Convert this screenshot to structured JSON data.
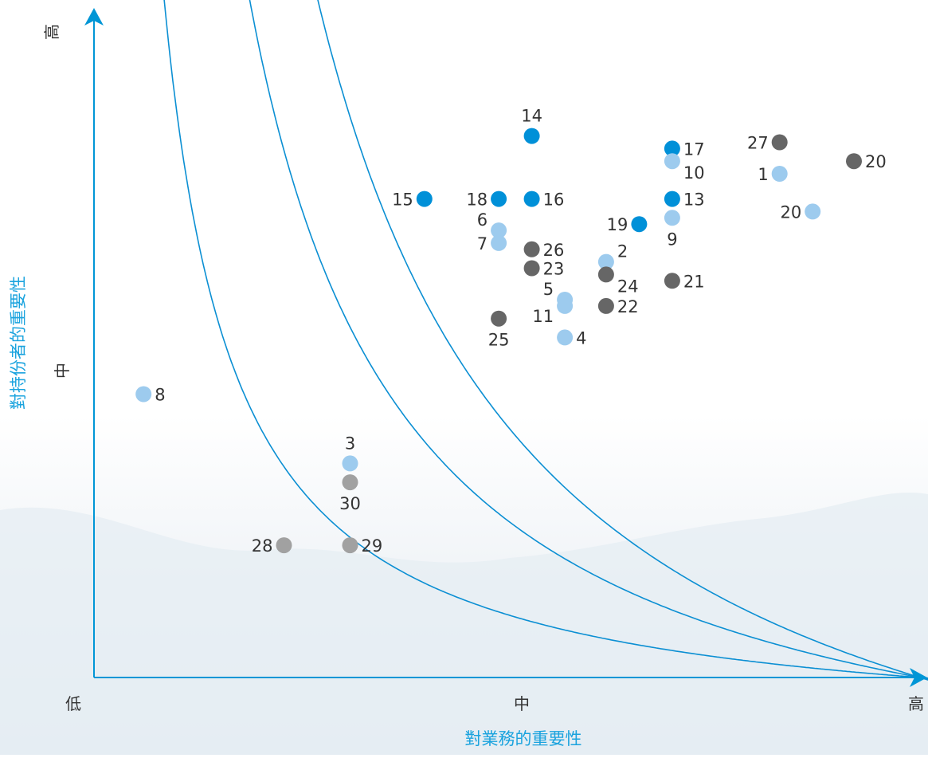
{
  "chart_data": {
    "type": "scatter",
    "title": "",
    "xlabel": "對業務的重要性",
    "ylabel": "對持份者的重要性",
    "xlim": [
      0,
      1
    ],
    "ylim": [
      0,
      1
    ],
    "x_tick_labels": [
      "低",
      "中",
      "高"
    ],
    "y_tick_labels": [
      "中",
      "高"
    ],
    "grid": false,
    "colors": {
      "axis": "#0096d6",
      "curve": "#0b8fd3",
      "label_text": "#333333",
      "dark_blue": "#0090d8",
      "light_blue": "#9dcbee",
      "dark_gray": "#666666",
      "light_gray": "#a1a1a1"
    },
    "curves": [
      {
        "k": 0.1
      },
      {
        "k": 0.25
      },
      {
        "k": 0.4
      }
    ],
    "series": [
      {
        "color_key": "dark_blue",
        "points": [
          {
            "label": "14",
            "x": 0.53,
            "y": 0.86,
            "pos": "above"
          },
          {
            "label": "15",
            "x": 0.4,
            "y": 0.76,
            "pos": "left"
          },
          {
            "label": "18",
            "x": 0.49,
            "y": 0.76,
            "pos": "left"
          },
          {
            "label": "16",
            "x": 0.53,
            "y": 0.76,
            "pos": "right"
          },
          {
            "label": "17",
            "x": 0.7,
            "y": 0.84,
            "pos": "right"
          },
          {
            "label": "13",
            "x": 0.7,
            "y": 0.76,
            "pos": "right"
          },
          {
            "label": "19",
            "x": 0.66,
            "y": 0.72,
            "pos": "left"
          }
        ]
      },
      {
        "color_key": "light_blue",
        "points": [
          {
            "label": "10",
            "x": 0.7,
            "y": 0.82,
            "pos": "right-low"
          },
          {
            "label": "1",
            "x": 0.83,
            "y": 0.8,
            "pos": "left"
          },
          {
            "label": "20",
            "x": 0.87,
            "y": 0.74,
            "pos": "left"
          },
          {
            "label": "9",
            "x": 0.7,
            "y": 0.73,
            "pos": "below"
          },
          {
            "label": "6",
            "x": 0.49,
            "y": 0.71,
            "pos": "left-high"
          },
          {
            "label": "7",
            "x": 0.49,
            "y": 0.69,
            "pos": "left"
          },
          {
            "label": "2",
            "x": 0.62,
            "y": 0.66,
            "pos": "right-high"
          },
          {
            "label": "5",
            "x": 0.57,
            "y": 0.6,
            "pos": "left-high"
          },
          {
            "label": "11",
            "x": 0.57,
            "y": 0.59,
            "pos": "left-low"
          },
          {
            "label": "4",
            "x": 0.57,
            "y": 0.54,
            "pos": "right"
          },
          {
            "label": "8",
            "x": 0.06,
            "y": 0.45,
            "pos": "right"
          },
          {
            "label": "3",
            "x": 0.31,
            "y": 0.34,
            "pos": "above"
          }
        ]
      },
      {
        "color_key": "dark_gray",
        "points": [
          {
            "label": "27",
            "x": 0.83,
            "y": 0.85,
            "pos": "left"
          },
          {
            "label": "20",
            "x": 0.92,
            "y": 0.82,
            "pos": "right"
          },
          {
            "label": "26",
            "x": 0.53,
            "y": 0.68,
            "pos": "right"
          },
          {
            "label": "23",
            "x": 0.53,
            "y": 0.65,
            "pos": "right"
          },
          {
            "label": "24",
            "x": 0.62,
            "y": 0.64,
            "pos": "right-low"
          },
          {
            "label": "21",
            "x": 0.7,
            "y": 0.63,
            "pos": "right"
          },
          {
            "label": "22",
            "x": 0.62,
            "y": 0.59,
            "pos": "right"
          },
          {
            "label": "25",
            "x": 0.49,
            "y": 0.57,
            "pos": "below"
          }
        ]
      },
      {
        "color_key": "light_gray",
        "points": [
          {
            "label": "30",
            "x": 0.31,
            "y": 0.31,
            "pos": "below"
          },
          {
            "label": "29",
            "x": 0.31,
            "y": 0.21,
            "pos": "right"
          },
          {
            "label": "28",
            "x": 0.23,
            "y": 0.21,
            "pos": "left"
          }
        ]
      }
    ]
  }
}
